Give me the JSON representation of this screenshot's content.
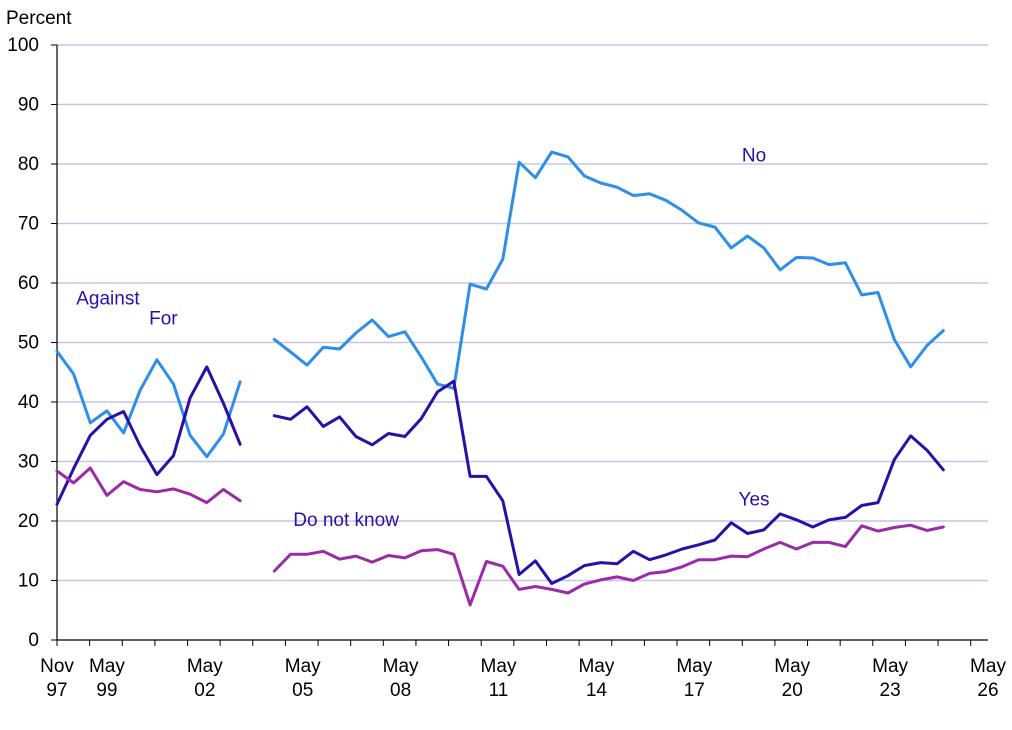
{
  "chart_data": {
    "type": "line",
    "ylabel": "Percent",
    "ylim": [
      0,
      100
    ],
    "yticks": [
      0,
      10,
      20,
      30,
      40,
      50,
      60,
      70,
      80,
      90,
      100
    ],
    "xlim_years": [
      1997.84,
      2026.37
    ],
    "x_tick_labels": [
      {
        "top": "Nov",
        "bottom": "97",
        "x": 1997.84
      },
      {
        "top": "May",
        "bottom": "99",
        "x": 1999.37
      },
      {
        "top": "May",
        "bottom": "02",
        "x": 2002.37
      },
      {
        "top": "May",
        "bottom": "05",
        "x": 2005.37
      },
      {
        "top": "May",
        "bottom": "08",
        "x": 2008.37
      },
      {
        "top": "May",
        "bottom": "11",
        "x": 2011.37
      },
      {
        "top": "May",
        "bottom": "14",
        "x": 2014.37
      },
      {
        "top": "May",
        "bottom": "17",
        "x": 2017.37
      },
      {
        "top": "May",
        "bottom": "20",
        "x": 2020.37
      },
      {
        "top": "May",
        "bottom": "23",
        "x": 2023.37
      },
      {
        "top": "May",
        "bottom": "26",
        "x": 2026.37
      }
    ],
    "grid": true,
    "series": [
      {
        "name": "Against",
        "color": "#2E8FEA",
        "segments": [
          [
            [
              1997.84,
              48.5
            ],
            [
              1998.35,
              44.7
            ],
            [
              1998.86,
              36.5
            ],
            [
              1999.37,
              38.5
            ],
            [
              1999.88,
              34.8
            ],
            [
              2000.39,
              42.0
            ],
            [
              2000.9,
              47.1
            ],
            [
              2001.41,
              43.0
            ],
            [
              2001.92,
              34.4
            ],
            [
              2002.43,
              30.8
            ],
            [
              2002.94,
              34.6
            ],
            [
              2003.45,
              43.4
            ]
          ]
        ]
      },
      {
        "name": "For",
        "color": "#2A0FA8",
        "segments": [
          [
            [
              1997.84,
              22.8
            ],
            [
              1998.35,
              28.8
            ],
            [
              1998.86,
              34.4
            ],
            [
              1999.37,
              37.1
            ],
            [
              1999.88,
              38.4
            ],
            [
              2000.39,
              32.6
            ],
            [
              2000.9,
              27.8
            ],
            [
              2001.41,
              31.0
            ],
            [
              2001.92,
              40.7
            ],
            [
              2002.43,
              45.9
            ],
            [
              2002.94,
              39.8
            ],
            [
              2003.45,
              32.9
            ]
          ]
        ]
      },
      {
        "name": "No",
        "color": "#2E8FEA",
        "segments": [
          [
            [
              2004.5,
              50.5
            ],
            [
              2005.0,
              48.4
            ],
            [
              2005.5,
              46.2
            ],
            [
              2006.0,
              49.2
            ],
            [
              2006.5,
              48.9
            ],
            [
              2007.0,
              51.6
            ],
            [
              2007.5,
              53.8
            ],
            [
              2008.0,
              51.0
            ],
            [
              2008.5,
              51.8
            ],
            [
              2009.0,
              47.6
            ],
            [
              2009.5,
              43.0
            ],
            [
              2010.0,
              42.3
            ]
          ],
          [
            [
              2010.0,
              42.3
            ],
            [
              2010.5,
              59.8
            ],
            [
              2011.0,
              59.0
            ],
            [
              2011.5,
              64.0
            ],
            [
              2012.0,
              80.3
            ],
            [
              2012.5,
              77.7
            ],
            [
              2013.0,
              82.0
            ],
            [
              2013.5,
              81.2
            ],
            [
              2014.0,
              78.0
            ],
            [
              2014.5,
              76.8
            ],
            [
              2015.0,
              76.1
            ],
            [
              2015.5,
              74.7
            ],
            [
              2016.0,
              75.0
            ],
            [
              2016.5,
              73.9
            ],
            [
              2017.0,
              72.2
            ],
            [
              2017.5,
              70.1
            ],
            [
              2018.0,
              69.4
            ],
            [
              2018.5,
              65.9
            ],
            [
              2019.0,
              67.9
            ],
            [
              2019.5,
              65.9
            ],
            [
              2020.0,
              62.2
            ],
            [
              2020.5,
              64.3
            ],
            [
              2021.0,
              64.2
            ],
            [
              2021.5,
              63.1
            ],
            [
              2022.0,
              63.4
            ],
            [
              2022.5,
              58.0
            ],
            [
              2023.0,
              58.4
            ],
            [
              2023.5,
              50.5
            ],
            [
              2024.0,
              45.9
            ],
            [
              2024.5,
              49.5
            ],
            [
              2025.0,
              52.0
            ]
          ]
        ]
      },
      {
        "name": "Yes",
        "color": "#2A0FA8",
        "segments": [
          [
            [
              2004.5,
              37.7
            ],
            [
              2005.0,
              37.1
            ],
            [
              2005.5,
              39.2
            ],
            [
              2006.0,
              35.9
            ],
            [
              2006.5,
              37.5
            ],
            [
              2007.0,
              34.2
            ],
            [
              2007.5,
              32.8
            ],
            [
              2008.0,
              34.7
            ],
            [
              2008.5,
              34.2
            ],
            [
              2009.0,
              37.2
            ],
            [
              2009.5,
              41.7
            ],
            [
              2010.0,
              43.5
            ]
          ],
          [
            [
              2010.0,
              43.5
            ],
            [
              2010.5,
              27.5
            ],
            [
              2011.0,
              27.5
            ],
            [
              2011.5,
              23.4
            ],
            [
              2012.0,
              11.0
            ],
            [
              2012.5,
              13.3
            ],
            [
              2013.0,
              9.5
            ],
            [
              2013.5,
              10.8
            ],
            [
              2014.0,
              12.5
            ],
            [
              2014.5,
              13.0
            ],
            [
              2015.0,
              12.8
            ],
            [
              2015.5,
              14.9
            ],
            [
              2016.0,
              13.5
            ],
            [
              2016.5,
              14.3
            ],
            [
              2017.0,
              15.3
            ],
            [
              2017.5,
              16.0
            ],
            [
              2018.0,
              16.8
            ],
            [
              2018.5,
              19.7
            ],
            [
              2019.0,
              17.9
            ],
            [
              2019.5,
              18.5
            ],
            [
              2020.0,
              21.2
            ],
            [
              2020.5,
              20.2
            ],
            [
              2021.0,
              19.0
            ],
            [
              2021.5,
              20.2
            ],
            [
              2022.0,
              20.6
            ],
            [
              2022.5,
              22.6
            ],
            [
              2023.0,
              23.1
            ],
            [
              2023.5,
              30.3
            ],
            [
              2024.0,
              34.3
            ],
            [
              2024.5,
              31.9
            ],
            [
              2025.0,
              28.6
            ]
          ]
        ]
      },
      {
        "name": "Do not know",
        "color": "#9B2AA8",
        "segments": [
          [
            [
              1997.84,
              28.4
            ],
            [
              1998.35,
              26.4
            ],
            [
              1998.86,
              28.9
            ],
            [
              1999.37,
              24.3
            ],
            [
              1999.88,
              26.6
            ],
            [
              2000.39,
              25.3
            ],
            [
              2000.9,
              24.9
            ],
            [
              2001.41,
              25.4
            ],
            [
              2001.92,
              24.5
            ],
            [
              2002.43,
              23.1
            ],
            [
              2002.94,
              25.3
            ],
            [
              2003.45,
              23.4
            ]
          ],
          [
            [
              2004.5,
              11.6
            ],
            [
              2005.0,
              14.4
            ],
            [
              2005.5,
              14.4
            ],
            [
              2006.0,
              14.9
            ],
            [
              2006.5,
              13.6
            ],
            [
              2007.0,
              14.1
            ],
            [
              2007.5,
              13.1
            ],
            [
              2008.0,
              14.2
            ],
            [
              2008.5,
              13.8
            ],
            [
              2009.0,
              15.0
            ],
            [
              2009.5,
              15.2
            ],
            [
              2010.0,
              14.4
            ],
            [
              2010.5,
              5.9
            ],
            [
              2011.0,
              13.2
            ],
            [
              2011.5,
              12.4
            ],
            [
              2012.0,
              8.5
            ],
            [
              2012.5,
              9.0
            ],
            [
              2013.0,
              8.5
            ],
            [
              2013.5,
              7.9
            ],
            [
              2014.0,
              9.4
            ],
            [
              2014.5,
              10.1
            ],
            [
              2015.0,
              10.6
            ],
            [
              2015.5,
              10.0
            ],
            [
              2016.0,
              11.2
            ],
            [
              2016.5,
              11.5
            ],
            [
              2017.0,
              12.3
            ],
            [
              2017.5,
              13.5
            ],
            [
              2018.0,
              13.5
            ],
            [
              2018.5,
              14.1
            ],
            [
              2019.0,
              14.0
            ],
            [
              2019.5,
              15.3
            ],
            [
              2020.0,
              16.4
            ],
            [
              2020.5,
              15.3
            ],
            [
              2021.0,
              16.4
            ],
            [
              2021.5,
              16.4
            ],
            [
              2022.0,
              15.7
            ],
            [
              2022.5,
              19.2
            ],
            [
              2023.0,
              18.3
            ],
            [
              2023.5,
              18.9
            ],
            [
              2024.0,
              19.3
            ],
            [
              2024.5,
              18.4
            ],
            [
              2025.0,
              19.0
            ]
          ]
        ]
      }
    ],
    "annotations": [
      {
        "text": "Against",
        "series": "Against",
        "color": "#2A0FA8",
        "x": 1999.4,
        "y": 57.6
      },
      {
        "text": "For",
        "series": "For",
        "color": "#2A0FA8",
        "x": 2001.1,
        "y": 54.2
      },
      {
        "text": "No",
        "series": "No",
        "color": "#2A0FA8",
        "x": 2019.2,
        "y": 81.6
      },
      {
        "text": "Yes",
        "series": "Yes",
        "color": "#2A0FA8",
        "x": 2019.2,
        "y": 23.8
      },
      {
        "text": "Do not know",
        "series": "Do not know",
        "color": "#2A0FA8",
        "x": 2006.7,
        "y": 20.3
      }
    ]
  }
}
